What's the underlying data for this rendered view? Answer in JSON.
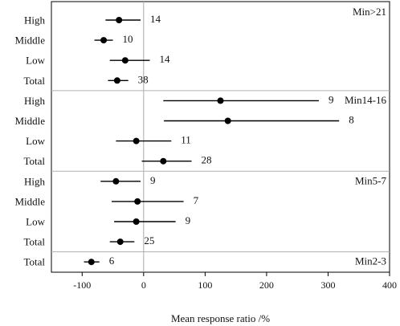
{
  "chart_data": {
    "type": "forest",
    "xlabel": "Mean response ratio /%",
    "xlim": [
      -150,
      400
    ],
    "xticks": [
      -100,
      0,
      100,
      200,
      300,
      400
    ],
    "reference_line": 0,
    "groups": [
      {
        "name": "Min>21",
        "rows": [
          {
            "label": "High",
            "mean": -40,
            "lo": -62,
            "hi": -5,
            "n": "14"
          },
          {
            "label": "Middle",
            "mean": -65,
            "lo": -80,
            "hi": -50,
            "n": "10"
          },
          {
            "label": "Low",
            "mean": -30,
            "lo": -55,
            "hi": 10,
            "n": "14"
          },
          {
            "label": "Total",
            "mean": -43,
            "lo": -58,
            "hi": -25,
            "n": "38"
          }
        ]
      },
      {
        "name": "Min14-16",
        "rows": [
          {
            "label": "High",
            "mean": 125,
            "lo": 32,
            "hi": 285,
            "n": "9"
          },
          {
            "label": "Middle",
            "mean": 137,
            "lo": 33,
            "hi": 318,
            "n": "8"
          },
          {
            "label": "Low",
            "mean": -12,
            "lo": -45,
            "hi": 45,
            "n": "11"
          },
          {
            "label": "Total",
            "mean": 32,
            "lo": -3,
            "hi": 78,
            "n": "28"
          }
        ]
      },
      {
        "name": "Min5-7",
        "rows": [
          {
            "label": "High",
            "mean": -45,
            "lo": -70,
            "hi": -5,
            "n": "9"
          },
          {
            "label": "Middle",
            "mean": -10,
            "lo": -52,
            "hi": 65,
            "n": "7"
          },
          {
            "label": "Low",
            "mean": -12,
            "lo": -48,
            "hi": 52,
            "n": "9"
          },
          {
            "label": "Total",
            "mean": -38,
            "lo": -55,
            "hi": -15,
            "n": "25"
          }
        ]
      },
      {
        "name": "Min2-3",
        "rows": [
          {
            "label": "Total",
            "mean": -85,
            "lo": -97,
            "hi": -72,
            "n": "6"
          }
        ]
      }
    ]
  }
}
